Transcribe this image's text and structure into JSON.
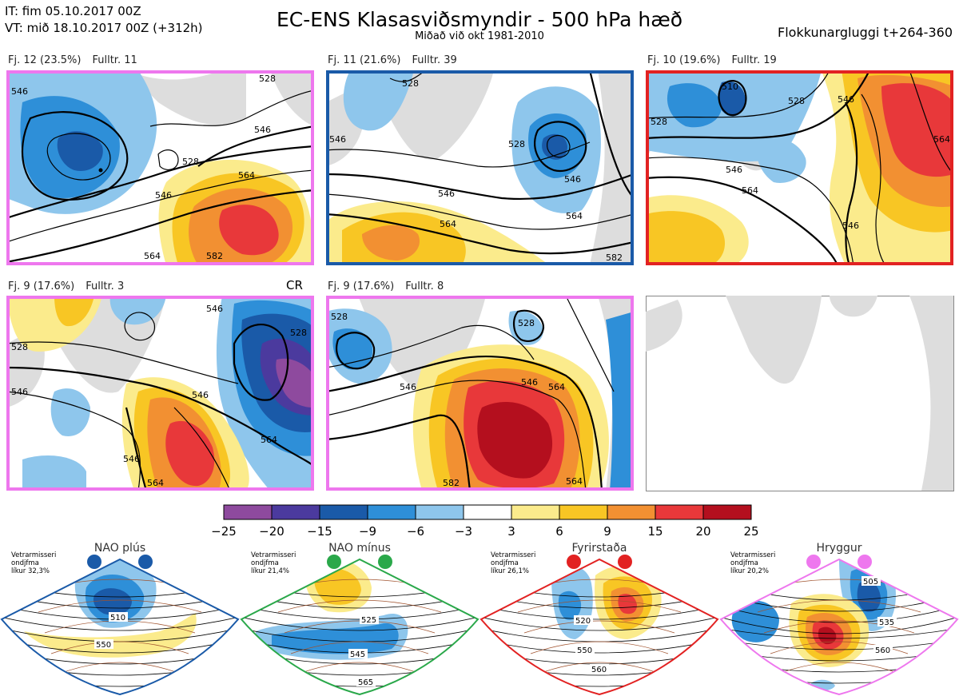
{
  "header": {
    "it_line": "IT: fim 05.10.2017 00Z",
    "vt_line": "VT: mið 18.10.2017 00Z  (+312h)",
    "title": "EC-ENS Klasasviðsmyndir - 500 hPa hæð",
    "subtitle": "Miðað við okt 1981-2010",
    "window": "Flokkunargluggi t+264-360"
  },
  "panels": [
    {
      "count": "Fj. 12 (23.5%)",
      "rep": "Fulltr. 11",
      "frame_color": "#ee77ee",
      "pattern": "nao-plus-like",
      "contour_labels": [
        "546",
        "528",
        "546",
        "564",
        "582",
        "564",
        "546",
        "528"
      ]
    },
    {
      "count": "Fj. 11 (21.6%)",
      "rep": "Fulltr. 39",
      "frame_color": "#1a5aa8",
      "pattern": "nao-minus-like",
      "contour_labels": [
        "528",
        "546",
        "546",
        "564",
        "546",
        "564",
        "582",
        "528"
      ]
    },
    {
      "count": "Fj. 10 (19.6%)",
      "rep": "Fulltr. 19",
      "frame_color": "#e22222",
      "pattern": "blocking-like",
      "contour_labels": [
        "510",
        "528",
        "528",
        "546",
        "564",
        "546",
        "564",
        "546"
      ]
    },
    {
      "count": "Fj. 9 (17.6%)",
      "rep": "Fulltr. 3",
      "frame_color": "#ee77ee",
      "pattern": "ridge-like",
      "extra_label": "CR",
      "contour_labels": [
        "528",
        "546",
        "546",
        "528",
        "546",
        "564",
        "546",
        "564"
      ]
    },
    {
      "count": "Fj. 9 (17.6%)",
      "rep": "Fulltr. 8",
      "frame_color": "#ee77ee",
      "pattern": "ridge-like",
      "contour_labels": [
        "528",
        "528",
        "546",
        "564",
        "546",
        "564",
        "582"
      ]
    }
  ],
  "colorbar": {
    "ticks": [
      "−25",
      "−20",
      "−15",
      "−9",
      "−6",
      "−3",
      "3",
      "6",
      "9",
      "15",
      "20",
      "25"
    ],
    "colors": [
      "#8e4a9e",
      "#4b3a9e",
      "#1a5aa8",
      "#2e8fd8",
      "#8ec6ec",
      "#ffffff",
      "#fbeb8c",
      "#f8c624",
      "#f29032",
      "#e8383a",
      "#b40f1e"
    ]
  },
  "regimes": [
    {
      "name": "NAO plús",
      "info": [
        "Vetrarmisseri",
        "ondjfma",
        "líkur 32,3%"
      ],
      "color": "#1a5aa8",
      "contour_labels": [
        "510",
        "550"
      ]
    },
    {
      "name": "NAO mínus",
      "info": [
        "Vetrarmisseri",
        "ondjfma",
        "líkur 21,4%"
      ],
      "color": "#2aa84a",
      "contour_labels": [
        "525",
        "545",
        "565"
      ]
    },
    {
      "name": "Fyrirstaða",
      "info": [
        "Vetrarmisseri",
        "ondjfma",
        "líkur 26,1%"
      ],
      "color": "#e22222",
      "contour_labels": [
        "520",
        "550",
        "560"
      ]
    },
    {
      "name": "Hryggur",
      "info": [
        "Vetrarmisseri",
        "ondjfma",
        "líkur 20,2%"
      ],
      "color": "#ee77ee",
      "contour_labels": [
        "505",
        "535",
        "560"
      ]
    }
  ]
}
